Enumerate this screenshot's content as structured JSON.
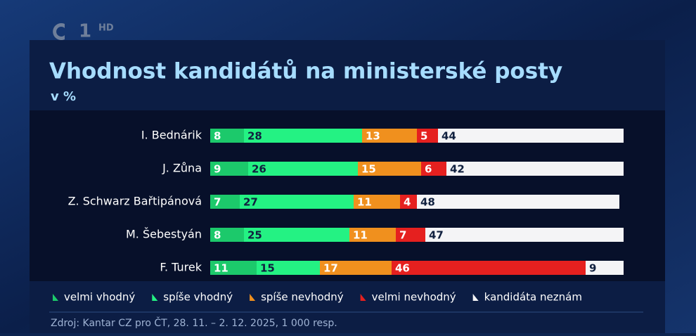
{
  "logo": {
    "channel": "1",
    "badge": "HD"
  },
  "chart_data": {
    "type": "stacked-bar-horizontal",
    "title": "Vhodnost kandidátů na ministerské posty",
    "subtitle": "v %",
    "categories": [
      "I. Bednárik",
      "J. Zůna",
      "Z. Schwarz Bařtipánová",
      "M. Šebestyán",
      "F. Turek"
    ],
    "series": [
      {
        "name": "velmi vhodný",
        "color": "#1cc96b",
        "values": [
          8,
          9,
          7,
          8,
          11
        ]
      },
      {
        "name": "spíše vhodný",
        "color": "#24f283",
        "values": [
          28,
          26,
          27,
          25,
          15
        ]
      },
      {
        "name": "spíše nevhodný",
        "color": "#f0901e",
        "values": [
          13,
          15,
          11,
          11,
          17
        ]
      },
      {
        "name": "velmi nevhodný",
        "color": "#e5201f",
        "values": [
          5,
          6,
          4,
          7,
          46
        ]
      },
      {
        "name": "kandidáta neznám",
        "color": "#f4f4f6",
        "values": [
          44,
          42,
          48,
          47,
          9
        ]
      }
    ],
    "xlim": [
      0,
      100
    ],
    "source": "Zdroj: Kantar CZ pro ČT, 28. 11. – 2. 12. 2025, 1 000 resp."
  }
}
